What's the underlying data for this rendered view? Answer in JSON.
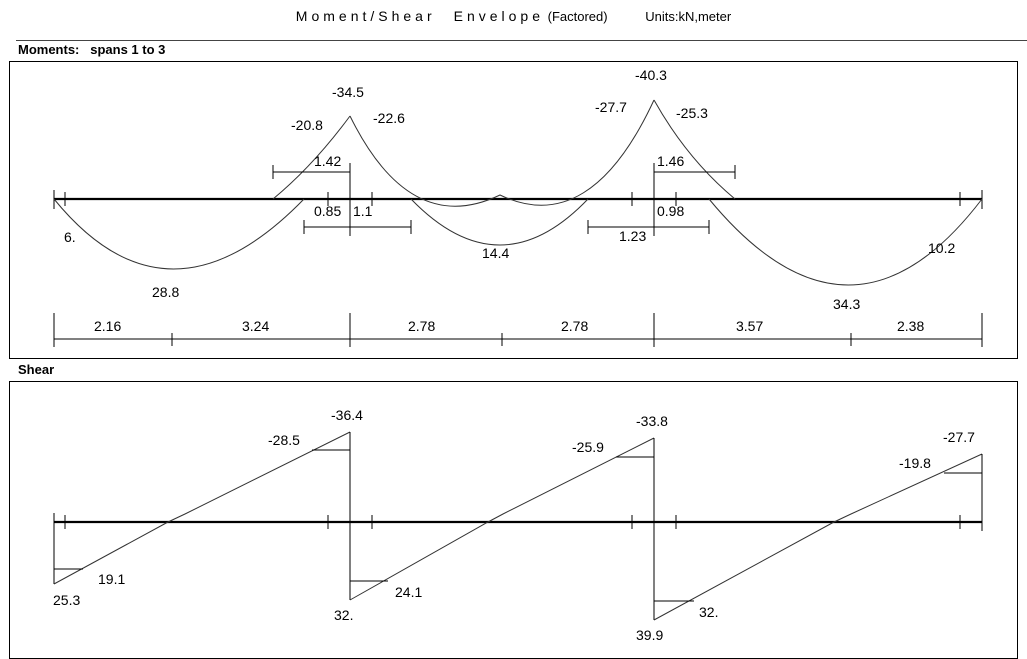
{
  "header": {
    "title_main": "Moment/Shear",
    "title_sub": "Envelope",
    "title_factored": "(Factored)",
    "units": "Units:kN,meter"
  },
  "moments": {
    "label": "Moments:",
    "spans_label": "spans  1 to  3",
    "values": {
      "left_end": "6.",
      "span1_pos": "28.8",
      "sup1_neg": "-34.5",
      "sup1_left": "-20.8",
      "sup1_right": "-22.6",
      "span2_pos": "14.4",
      "sup2_neg": "-40.3",
      "sup2_left": "-27.7",
      "sup2_right": "-25.3",
      "span3_pos": "34.3",
      "right_end": "10.2"
    },
    "cutoffs": {
      "sup1_top": "1.42",
      "sup1_bot_left": "0.85",
      "sup1_bot_right": "1.1",
      "sup2_top": "1.46",
      "sup2_bot_left": "1.23",
      "sup2_bot_right": "0.98"
    },
    "dimensions": [
      "2.16",
      "3.24",
      "2.78",
      "2.78",
      "3.57",
      "2.38"
    ]
  },
  "shear": {
    "label": "Shear",
    "values": {
      "s1_left": "25.3",
      "s1_left_d": "19.1",
      "s1_right": "-36.4",
      "s1_right_d": "-28.5",
      "s2_left": "32.",
      "s2_left_d": "24.1",
      "s2_right": "-33.8",
      "s2_right_d": "-25.9",
      "s3_left": "39.9",
      "s3_left_d": "32.",
      "s3_right": "-27.7",
      "s3_right_d": "-19.8"
    }
  }
}
